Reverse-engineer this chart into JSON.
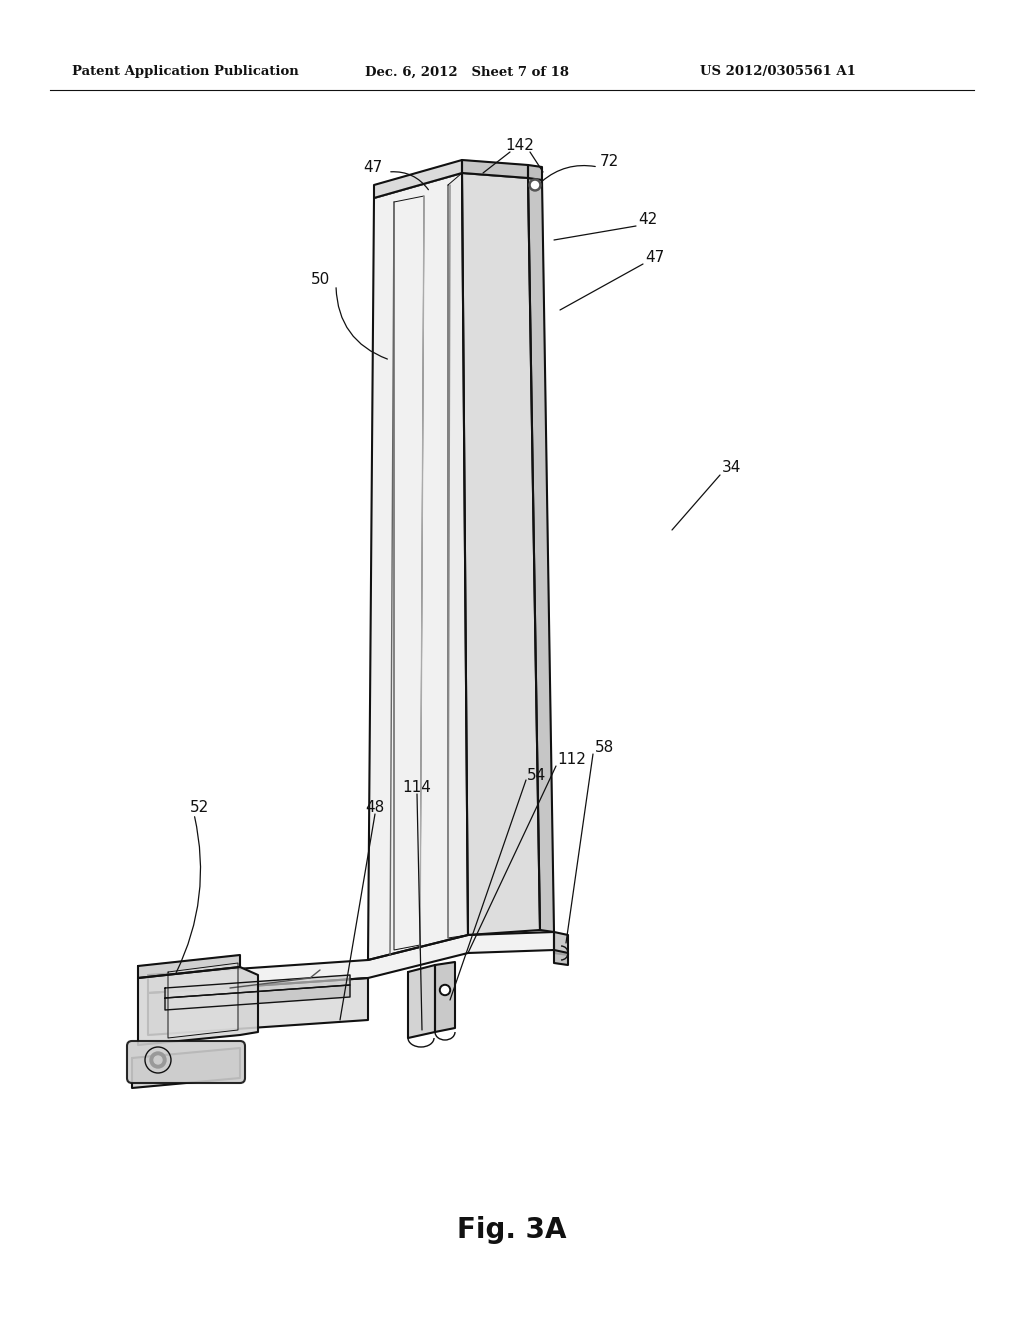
{
  "background": "#ffffff",
  "line_color": "#111111",
  "header_left": "Patent Application Publication",
  "header_mid": "Dec. 6, 2012   Sheet 7 of 18",
  "header_right": "US 2012/0305561 A1",
  "fig_caption": "Fig. 3A",
  "fill_light": "#eeeeee",
  "fill_mid": "#d8d8d8",
  "fill_dark": "#c0c0c0",
  "fill_shade": "#b8b8b8"
}
